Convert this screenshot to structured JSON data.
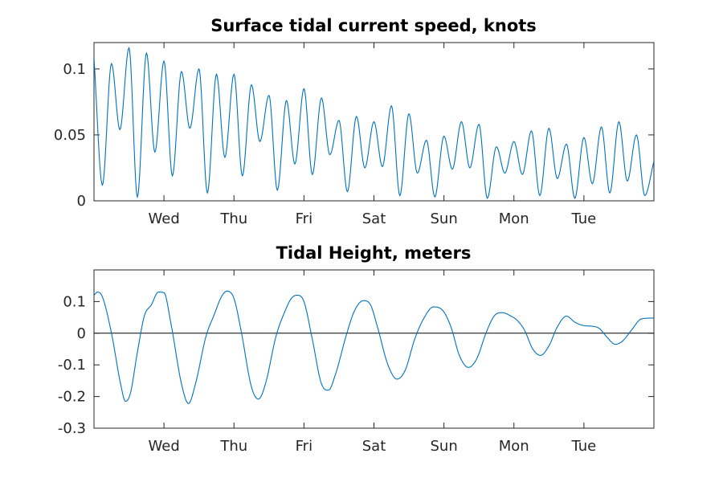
{
  "chart_data": [
    {
      "type": "line",
      "title": "Surface tidal current speed, knots",
      "xlabel": "",
      "ylabel": "",
      "x_tick_labels": [
        "Wed",
        "Thu",
        "Fri",
        "Sat",
        "Sun",
        "Mon",
        "Tue"
      ],
      "y_tick_labels": [
        "0",
        "0.05",
        "0.1"
      ],
      "y_ticks": [
        0,
        0.05,
        0.1
      ],
      "xlim": [
        0,
        8
      ],
      "ylim": [
        0,
        0.12
      ],
      "series_color": "#0072BD",
      "x_day_ticks": [
        1,
        2,
        3,
        4,
        5,
        6,
        7
      ],
      "peaks": [
        {
          "x": 0.0,
          "y": 0.108
        },
        {
          "x": 0.25,
          "y": 0.104
        },
        {
          "x": 0.5,
          "y": 0.116
        },
        {
          "x": 0.75,
          "y": 0.112
        },
        {
          "x": 1.0,
          "y": 0.106
        },
        {
          "x": 1.25,
          "y": 0.098
        },
        {
          "x": 1.5,
          "y": 0.1
        },
        {
          "x": 1.75,
          "y": 0.096
        },
        {
          "x": 2.0,
          "y": 0.096
        },
        {
          "x": 2.25,
          "y": 0.088
        },
        {
          "x": 2.5,
          "y": 0.08
        },
        {
          "x": 2.75,
          "y": 0.076
        },
        {
          "x": 3.0,
          "y": 0.085
        },
        {
          "x": 3.25,
          "y": 0.078
        },
        {
          "x": 3.5,
          "y": 0.061
        },
        {
          "x": 3.75,
          "y": 0.064
        },
        {
          "x": 4.0,
          "y": 0.06
        },
        {
          "x": 4.25,
          "y": 0.072
        },
        {
          "x": 4.5,
          "y": 0.066
        },
        {
          "x": 4.75,
          "y": 0.046
        },
        {
          "x": 5.0,
          "y": 0.049
        },
        {
          "x": 5.25,
          "y": 0.06
        },
        {
          "x": 5.5,
          "y": 0.058
        },
        {
          "x": 5.75,
          "y": 0.041
        },
        {
          "x": 6.0,
          "y": 0.045
        },
        {
          "x": 6.25,
          "y": 0.053
        },
        {
          "x": 6.5,
          "y": 0.055
        },
        {
          "x": 6.75,
          "y": 0.043
        },
        {
          "x": 7.0,
          "y": 0.048
        },
        {
          "x": 7.25,
          "y": 0.056
        },
        {
          "x": 7.5,
          "y": 0.06
        },
        {
          "x": 7.75,
          "y": 0.05
        },
        {
          "x": 8.0,
          "y": 0.03
        }
      ],
      "troughs": [
        {
          "x": 0.12,
          "y": 0.012
        },
        {
          "x": 0.37,
          "y": 0.054
        },
        {
          "x": 0.62,
          "y": 0.003
        },
        {
          "x": 0.87,
          "y": 0.037
        },
        {
          "x": 1.12,
          "y": 0.019
        },
        {
          "x": 1.37,
          "y": 0.055
        },
        {
          "x": 1.62,
          "y": 0.006
        },
        {
          "x": 1.87,
          "y": 0.033
        },
        {
          "x": 2.12,
          "y": 0.019
        },
        {
          "x": 2.37,
          "y": 0.045
        },
        {
          "x": 2.62,
          "y": 0.008
        },
        {
          "x": 2.87,
          "y": 0.028
        },
        {
          "x": 3.12,
          "y": 0.02
        },
        {
          "x": 3.37,
          "y": 0.035
        },
        {
          "x": 3.62,
          "y": 0.007
        },
        {
          "x": 3.87,
          "y": 0.025
        },
        {
          "x": 4.12,
          "y": 0.026
        },
        {
          "x": 4.37,
          "y": 0.004
        },
        {
          "x": 4.62,
          "y": 0.021
        },
        {
          "x": 4.87,
          "y": 0.003
        },
        {
          "x": 5.12,
          "y": 0.024
        },
        {
          "x": 5.37,
          "y": 0.025
        },
        {
          "x": 5.62,
          "y": 0.002
        },
        {
          "x": 5.87,
          "y": 0.021
        },
        {
          "x": 6.12,
          "y": 0.02
        },
        {
          "x": 6.37,
          "y": 0.004
        },
        {
          "x": 6.62,
          "y": 0.017
        },
        {
          "x": 6.87,
          "y": 0.002
        },
        {
          "x": 7.12,
          "y": 0.013
        },
        {
          "x": 7.37,
          "y": 0.006
        },
        {
          "x": 7.62,
          "y": 0.015
        },
        {
          "x": 7.87,
          "y": 0.004
        }
      ]
    },
    {
      "type": "line",
      "title": "Tidal Height, meters",
      "xlabel": "",
      "ylabel": "",
      "x_tick_labels": [
        "Wed",
        "Thu",
        "Fri",
        "Sat",
        "Sun",
        "Mon",
        "Tue"
      ],
      "y_tick_labels": [
        "-0.3",
        "-0.2",
        "-0.1",
        "0",
        "0.1"
      ],
      "y_ticks": [
        -0.3,
        -0.2,
        -0.1,
        0,
        0.1
      ],
      "xlim": [
        0,
        8
      ],
      "ylim": [
        -0.3,
        0.2
      ],
      "series_color": "#0072BD",
      "x_day_ticks": [
        1,
        2,
        3,
        4,
        5,
        6,
        7
      ],
      "points": [
        {
          "x": 0.0,
          "y": 0.12
        },
        {
          "x": 0.05,
          "y": 0.13
        },
        {
          "x": 0.12,
          "y": 0.115
        },
        {
          "x": 0.25,
          "y": 0.0
        },
        {
          "x": 0.38,
          "y": -0.16
        },
        {
          "x": 0.45,
          "y": -0.215
        },
        {
          "x": 0.52,
          "y": -0.19
        },
        {
          "x": 0.62,
          "y": -0.06
        },
        {
          "x": 0.72,
          "y": 0.055
        },
        {
          "x": 0.82,
          "y": 0.09
        },
        {
          "x": 0.92,
          "y": 0.13
        },
        {
          "x": 1.0,
          "y": 0.128
        },
        {
          "x": 1.1,
          "y": 0.03
        },
        {
          "x": 1.25,
          "y": -0.16
        },
        {
          "x": 1.35,
          "y": -0.222
        },
        {
          "x": 1.45,
          "y": -0.16
        },
        {
          "x": 1.6,
          "y": -0.01
        },
        {
          "x": 1.72,
          "y": 0.06
        },
        {
          "x": 1.82,
          "y": 0.115
        },
        {
          "x": 1.9,
          "y": 0.133
        },
        {
          "x": 2.0,
          "y": 0.11
        },
        {
          "x": 2.1,
          "y": 0.01
        },
        {
          "x": 2.25,
          "y": -0.17
        },
        {
          "x": 2.35,
          "y": -0.208
        },
        {
          "x": 2.45,
          "y": -0.16
        },
        {
          "x": 2.6,
          "y": -0.01
        },
        {
          "x": 2.72,
          "y": 0.065
        },
        {
          "x": 2.82,
          "y": 0.11
        },
        {
          "x": 2.9,
          "y": 0.12
        },
        {
          "x": 3.0,
          "y": 0.1
        },
        {
          "x": 3.12,
          "y": -0.02
        },
        {
          "x": 3.25,
          "y": -0.16
        },
        {
          "x": 3.35,
          "y": -0.18
        },
        {
          "x": 3.45,
          "y": -0.13
        },
        {
          "x": 3.6,
          "y": -0.01
        },
        {
          "x": 3.72,
          "y": 0.07
        },
        {
          "x": 3.85,
          "y": 0.103
        },
        {
          "x": 3.95,
          "y": 0.09
        },
        {
          "x": 4.05,
          "y": 0.02
        },
        {
          "x": 4.2,
          "y": -0.1
        },
        {
          "x": 4.33,
          "y": -0.145
        },
        {
          "x": 4.45,
          "y": -0.115
        },
        {
          "x": 4.58,
          "y": -0.02
        },
        {
          "x": 4.72,
          "y": 0.05
        },
        {
          "x": 4.85,
          "y": 0.083
        },
        {
          "x": 4.97,
          "y": 0.075
        },
        {
          "x": 5.1,
          "y": 0.02
        },
        {
          "x": 5.22,
          "y": -0.07
        },
        {
          "x": 5.35,
          "y": -0.108
        },
        {
          "x": 5.47,
          "y": -0.08
        },
        {
          "x": 5.6,
          "y": 0.0
        },
        {
          "x": 5.72,
          "y": 0.055
        },
        {
          "x": 5.83,
          "y": 0.065
        },
        {
          "x": 5.95,
          "y": 0.055
        },
        {
          "x": 6.05,
          "y": 0.04
        },
        {
          "x": 6.15,
          "y": 0.01
        },
        {
          "x": 6.27,
          "y": -0.05
        },
        {
          "x": 6.38,
          "y": -0.07
        },
        {
          "x": 6.5,
          "y": -0.04
        },
        {
          "x": 6.62,
          "y": 0.02
        },
        {
          "x": 6.75,
          "y": 0.054
        },
        {
          "x": 6.87,
          "y": 0.035
        },
        {
          "x": 7.0,
          "y": 0.024
        },
        {
          "x": 7.12,
          "y": 0.022
        },
        {
          "x": 7.22,
          "y": 0.015
        },
        {
          "x": 7.32,
          "y": -0.01
        },
        {
          "x": 7.45,
          "y": -0.035
        },
        {
          "x": 7.55,
          "y": -0.025
        },
        {
          "x": 7.68,
          "y": 0.01
        },
        {
          "x": 7.82,
          "y": 0.045
        },
        {
          "x": 8.0,
          "y": 0.048
        }
      ]
    }
  ]
}
